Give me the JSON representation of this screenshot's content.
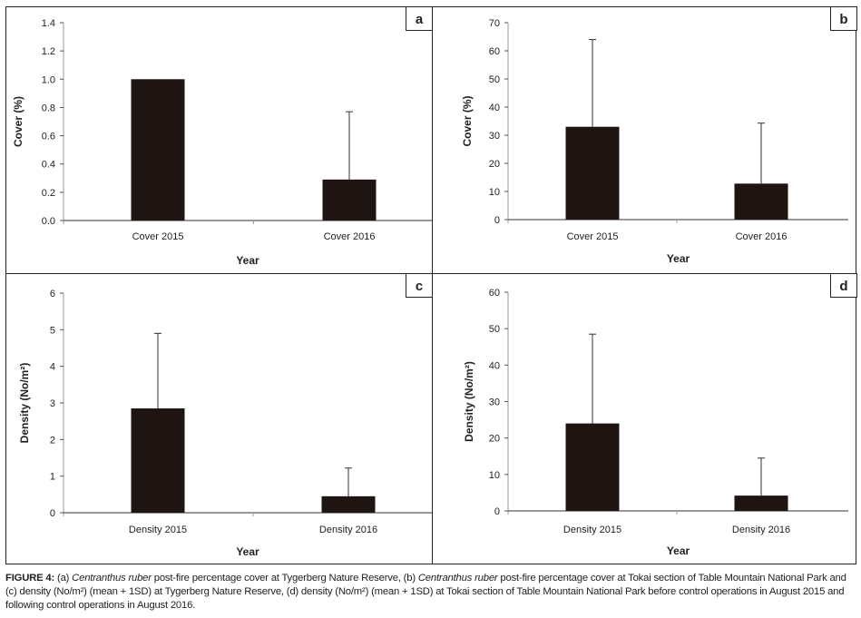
{
  "chart_data": [
    {
      "panel": "a",
      "type": "bar",
      "categories": [
        "Cover 2015",
        "Cover 2016"
      ],
      "values": [
        1.0,
        0.29
      ],
      "error_plus_sd": [
        0,
        0.48
      ],
      "xlabel": "Year",
      "ylabel": "Cover (%)",
      "ylim": [
        0,
        1.4
      ],
      "yticks": [
        "0.0",
        "0.2",
        "0.4",
        "0.6",
        "0.8",
        "1.0",
        "1.2",
        "1.4"
      ],
      "grid": false,
      "bar_color": "#1e1512"
    },
    {
      "panel": "b",
      "type": "bar",
      "categories": [
        "Cover 2015",
        "Cover 2016"
      ],
      "values": [
        33,
        12.8
      ],
      "error_plus_sd": [
        31,
        21.5
      ],
      "xlabel": "Year",
      "ylabel": "Cover (%)",
      "ylim": [
        0,
        70
      ],
      "yticks": [
        "0",
        "10",
        "20",
        "30",
        "40",
        "50",
        "60",
        "70"
      ],
      "grid": false,
      "bar_color": "#1e1512"
    },
    {
      "panel": "c",
      "type": "bar",
      "categories": [
        "Density 2015",
        "Density 2016"
      ],
      "values": [
        2.85,
        0.45
      ],
      "error_plus_sd": [
        2.05,
        0.77
      ],
      "xlabel": "Year",
      "ylabel": "Density (No/m²)",
      "ylim": [
        0,
        6
      ],
      "yticks": [
        "0",
        "1",
        "2",
        "3",
        "4",
        "5",
        "6"
      ],
      "grid": false,
      "bar_color": "#1e1512"
    },
    {
      "panel": "d",
      "type": "bar",
      "categories": [
        "Density 2015",
        "Density 2016"
      ],
      "values": [
        24,
        4.2
      ],
      "error_plus_sd": [
        24.5,
        10.3
      ],
      "xlabel": "Year",
      "ylabel": "Density (No/m²)",
      "ylim": [
        0,
        60
      ],
      "yticks": [
        "0",
        "10",
        "20",
        "30",
        "40",
        "50",
        "60"
      ],
      "grid": false,
      "bar_color": "#1e1512"
    }
  ],
  "caption": {
    "label": "FIGURE 4:",
    "p1": " (a) ",
    "i1": "Centranthus ruber",
    "p2": " post-fire percentage cover at Tygerberg Nature Reserve, (b) ",
    "i2": "Centranthus ruber",
    "p3": " post-fire percentage cover at Tokai section of Table Mountain National Park and (c) density (No/m²) (mean + 1SD) at Tygerberg Nature Reserve, (d) density (No/m²) (mean + 1SD) at Tokai section of Table Mountain National Park before control operations in August 2015 and following control operations in August 2016."
  }
}
